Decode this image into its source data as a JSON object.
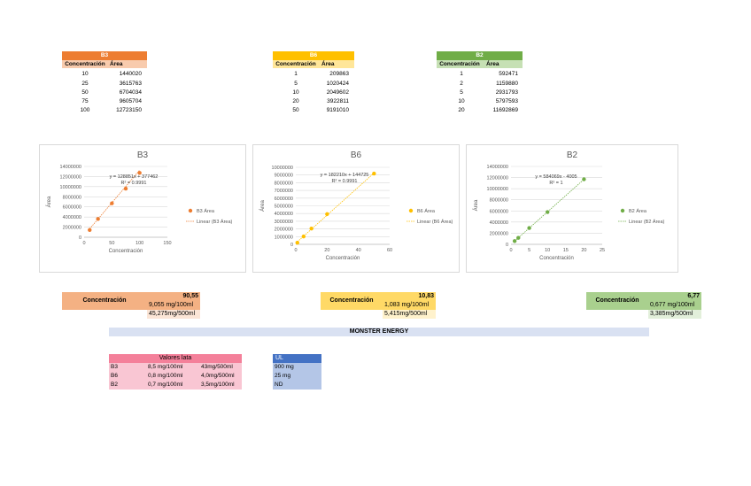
{
  "tables": [
    {
      "name": "B3",
      "header_color": "#ED7D31",
      "sub_color": "#F8CBAD",
      "col1": "Concentración",
      "col2": "Área",
      "rows": [
        [
          "10",
          "1440020"
        ],
        [
          "25",
          "3615763"
        ],
        [
          "50",
          "6704034"
        ],
        [
          "75",
          "9605704"
        ],
        [
          "100",
          "12723150"
        ]
      ]
    },
    {
      "name": "B6",
      "header_color": "#FFC000",
      "sub_color": "#FFE699",
      "col1": "Concentración",
      "col2": "Área",
      "rows": [
        [
          "1",
          "209863"
        ],
        [
          "5",
          "1020424"
        ],
        [
          "10",
          "2049602"
        ],
        [
          "20",
          "3922811"
        ],
        [
          "50",
          "9191010"
        ]
      ]
    },
    {
      "name": "B2",
      "header_color": "#70AD47",
      "sub_color": "#C6E0B4",
      "col1": "Concentración",
      "col2": "Área",
      "rows": [
        [
          "1",
          "592471"
        ],
        [
          "2",
          "1159880"
        ],
        [
          "5",
          "2931793"
        ],
        [
          "10",
          "5797593"
        ],
        [
          "20",
          "11692869"
        ]
      ]
    }
  ],
  "chart_data": [
    {
      "type": "scatter",
      "title": "B3",
      "xlabel": "Concentración",
      "ylabel": "Área",
      "color": "#ED7D31",
      "x": [
        10,
        25,
        50,
        75,
        100
      ],
      "y": [
        1440020,
        3615763,
        6704034,
        9605704,
        12723150
      ],
      "xlim": [
        0,
        150
      ],
      "xticks": [
        0,
        50,
        100,
        150
      ],
      "ylim": [
        0,
        14000000
      ],
      "yticks": [
        0,
        2000000,
        4000000,
        6000000,
        8000000,
        10000000,
        12000000,
        14000000
      ],
      "equation": "y = 128851x + 377462",
      "r2": "R² = 0.9991",
      "legend": [
        "B3 Área",
        "Linear (B3 Área)"
      ],
      "trend": {
        "slope": 128851,
        "intercept": 377462,
        "x0": 10,
        "x1": 100
      }
    },
    {
      "type": "scatter",
      "title": "B6",
      "xlabel": "Concentración",
      "ylabel": "Área",
      "color": "#FFC000",
      "x": [
        1,
        5,
        10,
        20,
        50
      ],
      "y": [
        209863,
        1020424,
        2049602,
        3922811,
        9191010
      ],
      "xlim": [
        0,
        60
      ],
      "xticks": [
        0,
        20,
        40,
        60
      ],
      "ylim": [
        0,
        10000000
      ],
      "yticks": [
        0,
        1000000,
        2000000,
        3000000,
        4000000,
        5000000,
        6000000,
        7000000,
        8000000,
        9000000,
        10000000
      ],
      "equation": "y = 182210x + 144725",
      "r2": "R² = 0.9991",
      "legend": [
        "B6 Área",
        "Linear (B6 Área)"
      ],
      "trend": {
        "slope": 182210,
        "intercept": 144725,
        "x0": 1,
        "x1": 50
      }
    },
    {
      "type": "scatter",
      "title": "B2",
      "xlabel": "Concentración",
      "ylabel": "Área",
      "color": "#70AD47",
      "x": [
        1,
        2,
        5,
        10,
        20
      ],
      "y": [
        592471,
        1159880,
        2931793,
        5797593,
        11692869
      ],
      "xlim": [
        0,
        25
      ],
      "xticks": [
        0,
        5,
        10,
        15,
        20,
        25
      ],
      "ylim": [
        0,
        14000000
      ],
      "yticks": [
        0,
        2000000,
        4000000,
        6000000,
        8000000,
        10000000,
        12000000,
        14000000
      ],
      "equation": "y = 584069x - 4005",
      "r2": "R² = 1",
      "legend": [
        "B2 Área",
        "Linear (B2 Área)"
      ],
      "trend": {
        "slope": 584069,
        "intercept": -4005,
        "x0": 1,
        "x1": 20
      }
    }
  ],
  "results": [
    {
      "label": "Concentración",
      "value": "90,55",
      "mg100": "9,055 mg/100ml",
      "mg500": "45,275mg/500ml",
      "dark": "#F4B183",
      "light": "#FBE5D6"
    },
    {
      "label": "Concentración",
      "value": "10,83",
      "mg100": "1,083 mg/100ml",
      "mg500": "5,415mg/500ml",
      "dark": "#FFD966",
      "light": "#FFF2CC"
    },
    {
      "label": "Concentración",
      "value": "6,77",
      "mg100": "0,677 mg/100ml",
      "mg500": "3,385mg/500ml",
      "dark": "#A9D08E",
      "light": "#E2EFDA"
    }
  ],
  "banner": {
    "text": "MONSTER ENERGY",
    "color": "#D9E1F2"
  },
  "valores": {
    "title": "Valores lata",
    "rows": [
      [
        "B3",
        "8,5 mg/100ml",
        "43mg/500ml"
      ],
      [
        "B6",
        "0,8 mg/100ml",
        "4,0mg/500ml"
      ],
      [
        "B2",
        "0,7 mg/100ml",
        "3,5mg/100ml"
      ]
    ]
  },
  "ul": {
    "title": "UL",
    "rows": [
      "900 mg",
      "25 mg",
      "ND"
    ]
  }
}
